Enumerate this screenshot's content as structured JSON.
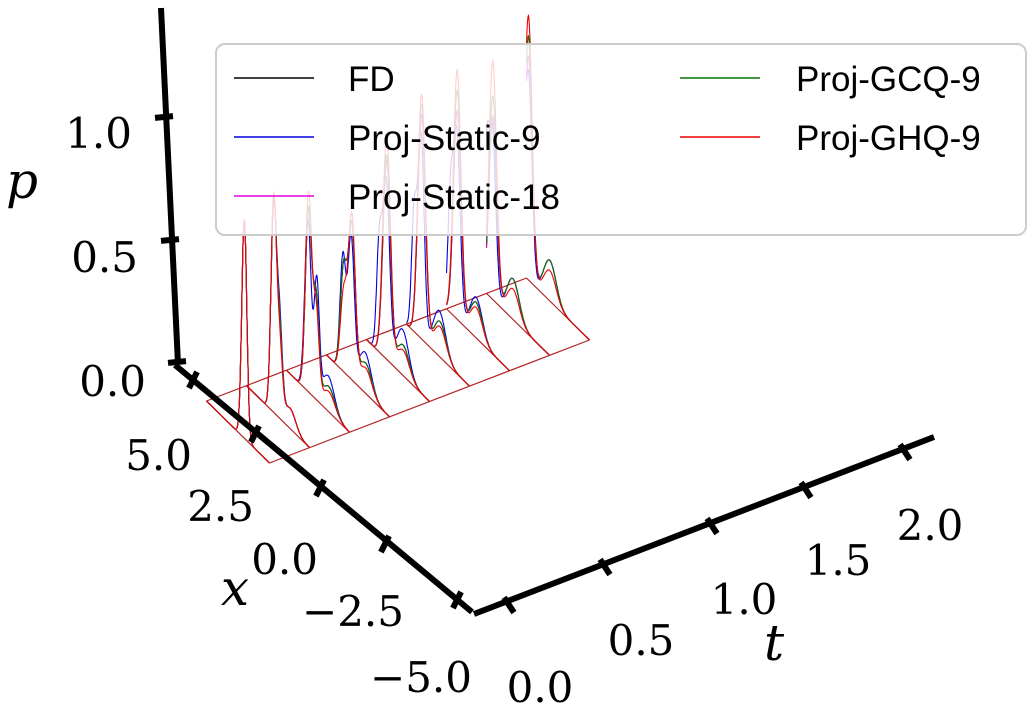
{
  "chart_data": {
    "type": "line",
    "subtype": "3d-waterfall",
    "title": "",
    "xlabel": "t",
    "ylabel": "x",
    "zlabel": "p",
    "x_ticks": [
      "0.0",
      "0.5",
      "1.0",
      "1.5",
      "2.0"
    ],
    "y_ticks": [
      "−5.0",
      "−2.5",
      "0.0",
      "2.5",
      "5.0"
    ],
    "z_ticks": [
      "0.0",
      "0.5",
      "1.0"
    ],
    "xlim": [
      0.0,
      2.0
    ],
    "ylim": [
      -5.0,
      5.0
    ],
    "zlim": [
      0.0,
      1.0
    ],
    "grid": false,
    "legend_position": "top-right",
    "legend_columns": 2,
    "t_slices": [
      0.0,
      0.25,
      0.5,
      0.75,
      1.0,
      1.25,
      1.5,
      1.75,
      2.0
    ],
    "series": [
      {
        "name": "FD",
        "color": "#000000",
        "peaks": [
          [
            [
              -1.0,
              0.86,
              0.4
            ]
          ],
          [
            [
              -1.9,
              0.08,
              0.9
            ],
            [
              -0.2,
              0.35,
              0.45
            ],
            [
              0.7,
              0.8,
              0.42
            ]
          ],
          [
            [
              -1.7,
              0.1,
              1.0
            ],
            [
              0.3,
              0.38,
              0.45
            ],
            [
              1.5,
              0.72,
              0.5
            ]
          ],
          [
            [
              -1.2,
              0.12,
              1.0
            ],
            [
              1.0,
              0.6,
              0.55
            ],
            [
              2.3,
              0.4,
              0.5
            ]
          ],
          [
            [
              -0.8,
              0.12,
              1.0
            ],
            [
              1.8,
              0.78,
              0.6
            ]
          ],
          [
            [
              -0.3,
              0.14,
              1.0
            ],
            [
              2.6,
              0.88,
              0.6
            ]
          ],
          [
            [
              0.3,
              0.14,
              1.0
            ],
            [
              3.3,
              0.82,
              0.6
            ]
          ],
          [
            [
              0.8,
              0.16,
              1.0
            ],
            [
              4.0,
              0.72,
              0.6
            ]
          ],
          [
            [
              1.3,
              0.16,
              1.0
            ],
            [
              4.7,
              0.88,
              0.6
            ]
          ]
        ]
      },
      {
        "name": "Proj-Static-9",
        "color": "#0000dd",
        "peaks": [
          [
            [
              -1.0,
              0.86,
              0.4
            ]
          ],
          [
            [
              -1.9,
              0.08,
              0.9
            ],
            [
              -0.2,
              0.4,
              0.45
            ],
            [
              0.7,
              0.78,
              0.42
            ]
          ],
          [
            [
              -1.6,
              0.14,
              1.0
            ],
            [
              0.2,
              0.45,
              0.4
            ],
            [
              1.6,
              0.68,
              0.5
            ]
          ],
          [
            [
              -1.1,
              0.16,
              1.0
            ],
            [
              1.1,
              0.55,
              0.5
            ],
            [
              2.4,
              0.45,
              0.45
            ]
          ],
          [
            [
              -0.7,
              0.18,
              1.0
            ],
            [
              1.9,
              0.7,
              0.55
            ],
            [
              3.0,
              0.4,
              0.4
            ]
          ],
          [
            [
              -0.2,
              0.18,
              1.0
            ],
            [
              2.7,
              0.8,
              0.5
            ],
            [
              3.8,
              0.45,
              0.4
            ]
          ],
          [
            [
              0.3,
              0.16,
              1.0
            ],
            [
              3.4,
              0.74,
              0.55
            ],
            [
              4.4,
              0.4,
              0.4
            ]
          ],
          [
            [
              0.8,
              0.16,
              1.0
            ],
            [
              4.1,
              0.68,
              0.55
            ],
            [
              5.0,
              0.45,
              0.35
            ]
          ],
          [
            [
              1.3,
              0.16,
              1.0
            ],
            [
              4.7,
              0.82,
              0.55
            ],
            [
              5.6,
              0.55,
              0.3
            ]
          ]
        ]
      },
      {
        "name": "Proj-Static-18",
        "color": "#dd00dd",
        "peaks": [
          [
            [
              -1.0,
              0.86,
              0.4
            ]
          ],
          [
            [
              -1.9,
              0.08,
              0.9
            ],
            [
              -0.2,
              0.36,
              0.45
            ],
            [
              0.7,
              0.8,
              0.42
            ]
          ],
          [
            [
              -1.7,
              0.1,
              1.0
            ],
            [
              0.3,
              0.38,
              0.45
            ],
            [
              1.5,
              0.71,
              0.5
            ]
          ],
          [
            [
              -1.2,
              0.12,
              1.0
            ],
            [
              1.0,
              0.6,
              0.55
            ],
            [
              2.3,
              0.4,
              0.5
            ]
          ],
          [
            [
              -0.8,
              0.12,
              1.0
            ],
            [
              1.8,
              0.77,
              0.6
            ]
          ],
          [
            [
              -0.3,
              0.14,
              1.0
            ],
            [
              2.6,
              0.87,
              0.6
            ]
          ],
          [
            [
              0.3,
              0.14,
              1.0
            ],
            [
              3.3,
              0.82,
              0.6
            ]
          ],
          [
            [
              0.8,
              0.16,
              1.0
            ],
            [
              4.0,
              0.72,
              0.6
            ]
          ],
          [
            [
              1.3,
              0.16,
              1.0
            ],
            [
              4.7,
              0.88,
              0.6
            ]
          ]
        ]
      },
      {
        "name": "Proj-GCQ-9",
        "color": "#007700",
        "peaks": [
          [
            [
              -1.0,
              0.86,
              0.4
            ]
          ],
          [
            [
              -1.9,
              0.08,
              0.9
            ],
            [
              -0.2,
              0.35,
              0.45
            ],
            [
              0.7,
              0.8,
              0.42
            ]
          ],
          [
            [
              -1.7,
              0.1,
              1.0
            ],
            [
              0.3,
              0.38,
              0.45
            ],
            [
              1.5,
              0.72,
              0.5
            ]
          ],
          [
            [
              -1.2,
              0.12,
              1.0
            ],
            [
              1.0,
              0.6,
              0.55
            ],
            [
              2.3,
              0.4,
              0.5
            ]
          ],
          [
            [
              -0.8,
              0.12,
              1.0
            ],
            [
              1.8,
              0.8,
              0.6
            ]
          ],
          [
            [
              -0.3,
              0.14,
              1.0
            ],
            [
              2.6,
              0.92,
              0.6
            ]
          ],
          [
            [
              0.3,
              0.14,
              1.0
            ],
            [
              3.3,
              0.9,
              0.6
            ]
          ],
          [
            [
              0.8,
              0.16,
              1.0
            ],
            [
              4.0,
              0.8,
              0.6
            ]
          ],
          [
            [
              1.3,
              0.16,
              1.0
            ],
            [
              4.7,
              0.96,
              0.6
            ]
          ]
        ]
      },
      {
        "name": "Proj-GHQ-9",
        "color": "#ee0000",
        "peaks": [
          [
            [
              -1.0,
              0.86,
              0.4
            ]
          ],
          [
            [
              -1.9,
              0.08,
              0.9
            ],
            [
              -0.2,
              0.3,
              0.45
            ],
            [
              0.7,
              0.82,
              0.42
            ]
          ],
          [
            [
              -1.7,
              0.08,
              1.0
            ],
            [
              0.3,
              0.34,
              0.45
            ],
            [
              1.5,
              0.78,
              0.5
            ]
          ],
          [
            [
              -1.2,
              0.1,
              1.0
            ],
            [
              1.0,
              0.64,
              0.55
            ],
            [
              2.3,
              0.3,
              0.5
            ]
          ],
          [
            [
              -0.8,
              0.1,
              1.0
            ],
            [
              1.8,
              0.88,
              0.6
            ]
          ],
          [
            [
              -0.3,
              0.12,
              1.0
            ],
            [
              2.6,
              0.96,
              0.6
            ]
          ],
          [
            [
              0.3,
              0.12,
              1.0
            ],
            [
              3.3,
              0.98,
              0.6
            ]
          ],
          [
            [
              0.8,
              0.12,
              1.0
            ],
            [
              4.0,
              0.94,
              0.6
            ]
          ],
          [
            [
              1.3,
              0.12,
              1.0
            ],
            [
              4.7,
              1.04,
              0.6
            ]
          ]
        ]
      }
    ]
  }
}
